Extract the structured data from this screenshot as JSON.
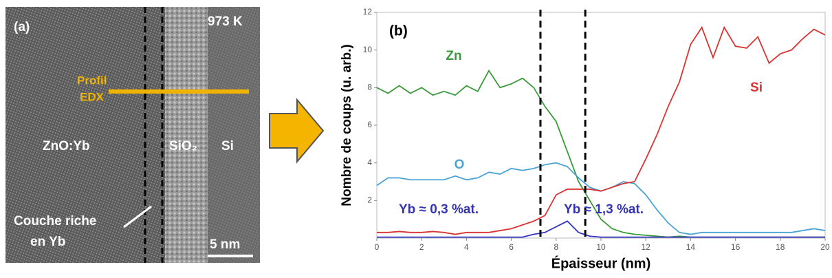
{
  "panel_a": {
    "label": "(a)",
    "temperature": "973 K",
    "profile": [
      "Profil",
      "EDX"
    ],
    "layers": [
      "ZnO:Yb",
      "SiO₂",
      "Si"
    ],
    "rich_layer": [
      "Couche riche",
      "en Yb"
    ],
    "scale": "5 nm"
  },
  "chart_data": {
    "type": "line",
    "panel_label": "(b)",
    "xlabel": "Épaisseur (nm)",
    "ylabel": "Nombre de coups (u. arb.)",
    "x": [
      0,
      0.5,
      1,
      1.5,
      2,
      2.5,
      3,
      3.5,
      4,
      4.5,
      5,
      5.5,
      6,
      6.5,
      7,
      7.5,
      8,
      8.5,
      9,
      9.5,
      10,
      10.5,
      11,
      11.5,
      12,
      12.5,
      13,
      13.5,
      14,
      14.5,
      15,
      15.5,
      16,
      16.5,
      17,
      17.5,
      18,
      18.5,
      19,
      19.5,
      20
    ],
    "series": [
      {
        "name": "Zn",
        "color": "#3a9a3a",
        "values": [
          8.0,
          7.7,
          8.1,
          7.7,
          8.0,
          7.6,
          7.8,
          7.6,
          8.1,
          7.8,
          8.9,
          8.0,
          8.2,
          8.5,
          8.0,
          7.0,
          6.2,
          4.6,
          3.0,
          2.0,
          1.0,
          0.5,
          0.3,
          0.2,
          0.15,
          0.1,
          0.05,
          0.1,
          0.05,
          0.05,
          0.05,
          0.05,
          0.05,
          0.05,
          0.05,
          0.05,
          0.05,
          0.05,
          0.05,
          0.05,
          0.05
        ]
      },
      {
        "name": "O",
        "color": "#4aa3d4",
        "values": [
          2.8,
          3.2,
          3.2,
          3.1,
          3.1,
          3.1,
          3.1,
          3.3,
          3.1,
          3.2,
          3.5,
          3.4,
          3.7,
          3.6,
          3.7,
          3.9,
          4.0,
          3.8,
          3.2,
          2.7,
          2.5,
          2.7,
          3.0,
          2.9,
          2.3,
          1.5,
          0.8,
          0.3,
          0.2,
          0.3,
          0.3,
          0.3,
          0.3,
          0.3,
          0.3,
          0.3,
          0.3,
          0.3,
          0.4,
          0.5,
          0.4
        ]
      },
      {
        "name": "Si",
        "color": "#d93232",
        "values": [
          0.3,
          0.3,
          0.35,
          0.3,
          0.3,
          0.35,
          0.3,
          0.2,
          0.3,
          0.3,
          0.3,
          0.4,
          0.5,
          0.7,
          0.9,
          1.2,
          2.3,
          2.6,
          2.6,
          2.6,
          2.5,
          2.7,
          2.9,
          3.0,
          4.2,
          5.5,
          7.0,
          8.3,
          10.3,
          11.2,
          9.6,
          11.2,
          10.2,
          10.1,
          10.7,
          9.3,
          9.8,
          10.0,
          10.6,
          11.1,
          10.8
        ]
      },
      {
        "color": "#3434c4",
        "values": [
          0.05,
          0.05,
          0.05,
          0.05,
          0.05,
          0.05,
          0.05,
          0.05,
          0.05,
          0.05,
          0.05,
          0.05,
          0.05,
          0.05,
          0.2,
          0.3,
          0.6,
          0.9,
          0.3,
          0.1,
          0.05,
          0.05,
          0.05,
          0.05,
          0.05,
          0.05,
          0.05,
          0.05,
          0.05,
          0.05,
          0.05,
          0.05,
          0.05,
          0.05,
          0.05,
          0.05,
          0.05,
          0.05,
          0.05,
          0.05,
          0.05
        ]
      }
    ],
    "annotations": [
      "Yb ≈ 0,3 %at.",
      "Yb ≈ 1,3 %at."
    ],
    "vlines": [
      7.3,
      9.3
    ],
    "xlim": [
      0,
      20
    ],
    "ylim": [
      0,
      12
    ],
    "xticks": [
      0,
      2,
      4,
      6,
      8,
      10,
      12,
      14,
      16,
      18,
      20
    ],
    "yticks": [
      2,
      4,
      6,
      8,
      10,
      12
    ]
  }
}
